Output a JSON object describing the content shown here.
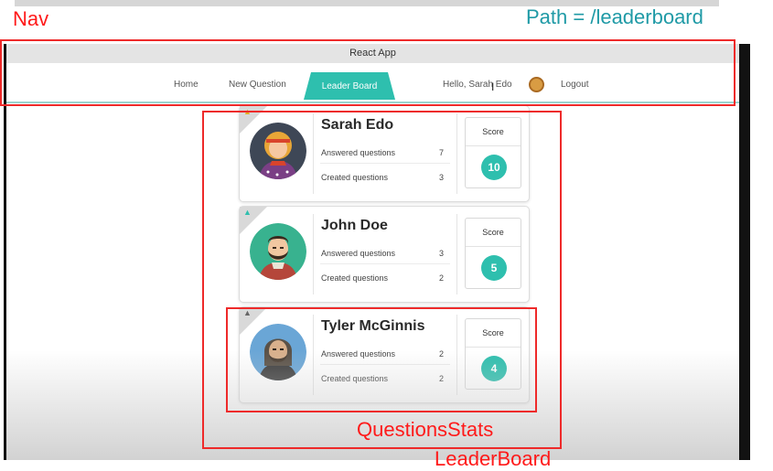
{
  "annotations": {
    "nav": "Nav",
    "path": "Path = /leaderboard",
    "questions_stats": "QuestionsStats",
    "leaderboard": "LeaderBoard"
  },
  "browser": {
    "title": "React App"
  },
  "nav": {
    "home": "Home",
    "new_question": "New Question",
    "leader_board": "Leader Board",
    "greeting": "Hello, Sarah Edo",
    "logout": "Logout"
  },
  "leaderboard": {
    "entries": [
      {
        "name": "Sarah Edo",
        "answered_label": "Answered questions",
        "answered": "7",
        "created_label": "Created questions",
        "created": "3",
        "score_label": "Score",
        "score": "10"
      },
      {
        "name": "John Doe",
        "answered_label": "Answered questions",
        "answered": "3",
        "created_label": "Created questions",
        "created": "2",
        "score_label": "Score",
        "score": "5"
      },
      {
        "name": "Tyler McGinnis",
        "answered_label": "Answered questions",
        "answered": "2",
        "created_label": "Created questions",
        "created": "2",
        "score_label": "Score",
        "score": "4"
      }
    ]
  },
  "colors": {
    "accent": "#2ebfae",
    "annotation": "#ee2a2a",
    "path_annotation": "#1f9aa6",
    "trophy_gold": "#e0b020",
    "trophy_teal": "#2ebfae",
    "trophy_dark": "#666666"
  },
  "icons": {
    "trophy": "trophy-icon",
    "avatar": "user-avatar"
  }
}
